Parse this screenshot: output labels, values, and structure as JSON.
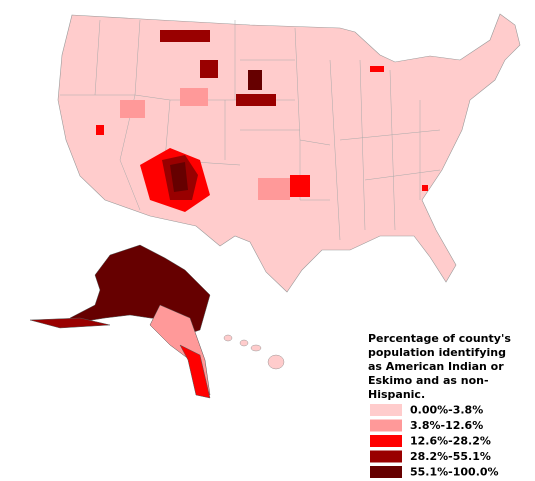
{
  "legend": {
    "title": [
      "Percentage of county's",
      "population identifying",
      "as American Indian or",
      "Eskimo and as non-",
      "Hispanic."
    ],
    "items": [
      {
        "label": "0.00%-3.8%",
        "color": "#ffcccc"
      },
      {
        "label": "3.8%-12.6%",
        "color": "#ff9999"
      },
      {
        "label": "12.6%-28.2%",
        "color": "#ff0000"
      },
      {
        "label": "28.2%-55.1%",
        "color": "#990000"
      },
      {
        "label": "55.1%-100.0%",
        "color": "#660000"
      }
    ]
  }
}
